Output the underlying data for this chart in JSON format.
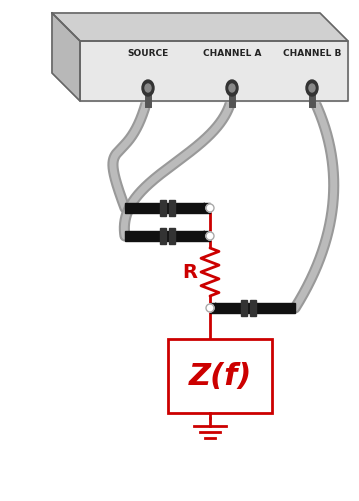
{
  "bg_color": "#ffffff",
  "red_color": "#cc0000",
  "gray_wire": "#999999",
  "gray_wire_light": "#bbbbbb",
  "black": "#111111",
  "dark_gray": "#444444",
  "box_front": "#e8e8e8",
  "box_top": "#d0d0d0",
  "box_left": "#b8b8b8",
  "box_edge": "#666666",
  "source_label": "SOURCE",
  "chA_label": "CHANNEL A",
  "chB_label": "CHANNEL B",
  "R_label": "R",
  "Zf_label": "Z(f)",
  "lw_wire": 8,
  "lw_red": 2.0
}
